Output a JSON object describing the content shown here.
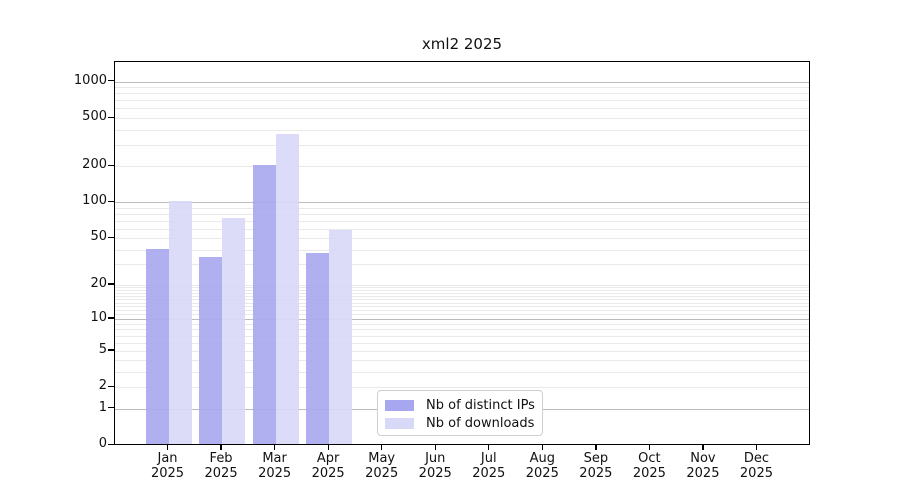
{
  "title": "xml2 2025",
  "legend": {
    "items": [
      {
        "label": "Nb of distinct IPs",
        "color": "#a7a7ef"
      },
      {
        "label": "Nb of downloads",
        "color": "#d8d8f7"
      }
    ]
  },
  "chart_data": {
    "type": "bar",
    "title": "xml2 2025",
    "categories": [
      "Jan",
      "Feb",
      "Mar",
      "Apr",
      "May",
      "Jun",
      "Jul",
      "Aug",
      "Sep",
      "Oct",
      "Nov",
      "Dec"
    ],
    "year": "2025",
    "series": [
      {
        "name": "Nb of distinct IPs",
        "color": "#a7a7ef",
        "values": [
          40,
          34,
          202,
          37,
          0,
          0,
          0,
          0,
          0,
          0,
          0,
          0
        ]
      },
      {
        "name": "Nb of downloads",
        "color": "#d8d8f7",
        "values": [
          100,
          73,
          360,
          58,
          0,
          0,
          0,
          0,
          0,
          0,
          0,
          0
        ]
      }
    ],
    "xlabel": "",
    "ylabel": "",
    "yscale": "log1p",
    "ylim": [
      0,
      1445
    ],
    "y_ticks": [
      0,
      1,
      2,
      5,
      10,
      20,
      50,
      100,
      200,
      500,
      1000
    ],
    "y_major_gridlines": [
      1,
      10,
      100,
      1000
    ],
    "y_minor_gridlines": [
      2,
      3,
      4,
      5,
      6,
      7,
      8,
      9,
      11,
      12,
      13,
      14,
      15,
      16,
      17,
      18,
      19,
      20,
      30,
      40,
      50,
      60,
      70,
      80,
      90,
      200,
      300,
      400,
      500,
      600,
      700,
      800,
      900
    ],
    "grid": true,
    "legend_position": "lower center"
  },
  "colors": {
    "major_grid": "#bcbcbc",
    "minor_grid": "#e9e9e9",
    "axis": "#000000",
    "text": "#111111"
  }
}
